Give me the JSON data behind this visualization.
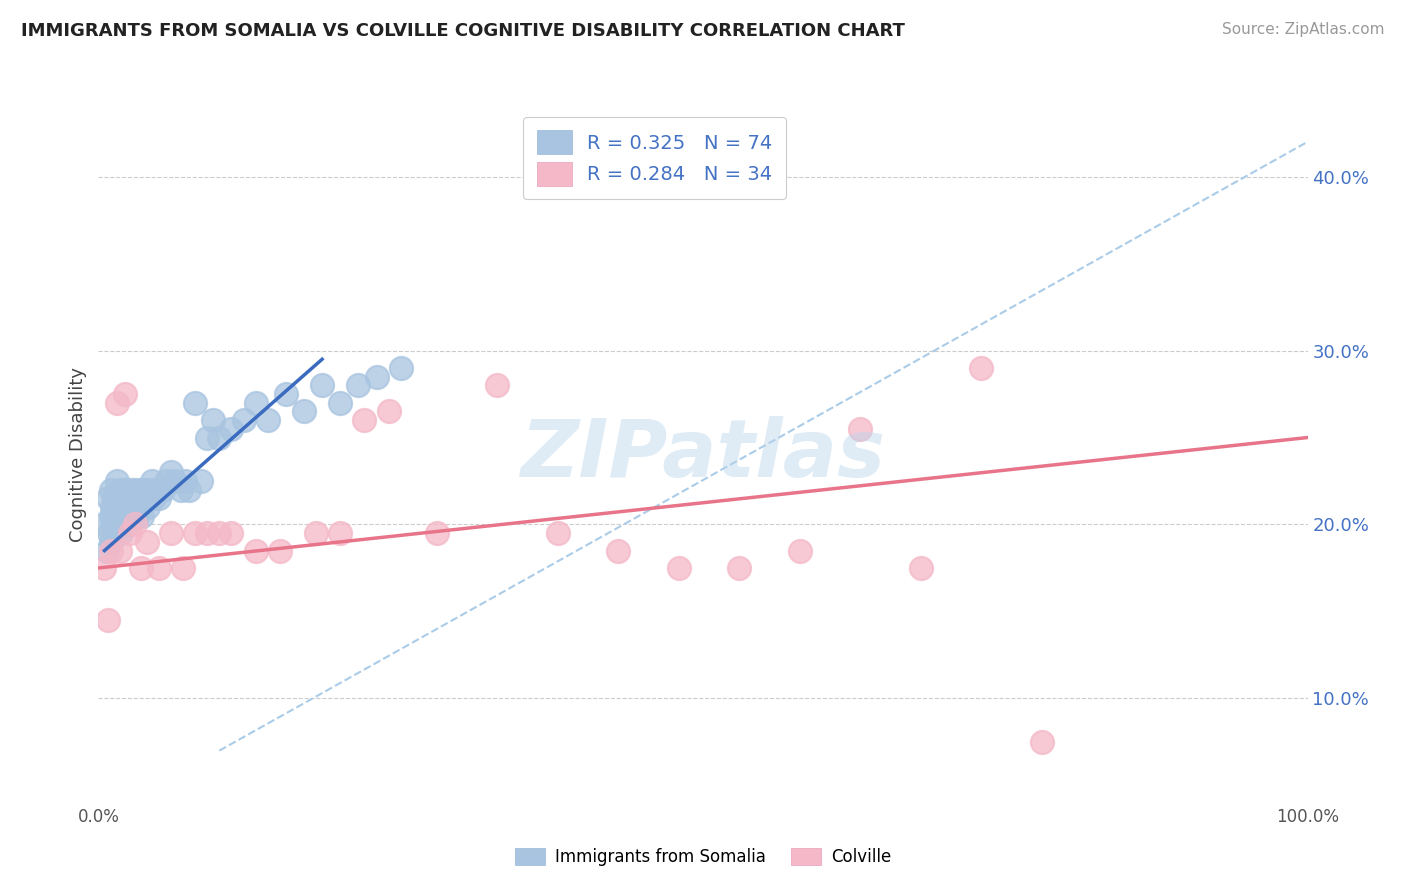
{
  "title": "IMMIGRANTS FROM SOMALIA VS COLVILLE COGNITIVE DISABILITY CORRELATION CHART",
  "source": "Source: ZipAtlas.com",
  "ylabel": "Cognitive Disability",
  "yticks": [
    0.1,
    0.2,
    0.3,
    0.4
  ],
  "ytick_labels": [
    "10.0%",
    "20.0%",
    "30.0%",
    "40.0%"
  ],
  "xticks": [
    0.0,
    1.0
  ],
  "xtick_labels": [
    "0.0%",
    "100.0%"
  ],
  "xlim": [
    0.0,
    1.0
  ],
  "ylim": [
    0.04,
    0.44
  ],
  "blue_R": "0.325",
  "blue_N": "74",
  "pink_R": "0.284",
  "pink_N": "34",
  "blue_color": "#a8c4e0",
  "pink_color": "#f4b8c8",
  "blue_line_color": "#3a6bbf",
  "pink_line_color": "#e8748a",
  "dashed_line_color": "#aacce8",
  "watermark": "ZIPatlas",
  "legend_blue_label": "Immigrants from Somalia",
  "legend_pink_label": "Colville",
  "blue_scatter_x": [
    0.005,
    0.007,
    0.008,
    0.009,
    0.01,
    0.01,
    0.01,
    0.011,
    0.012,
    0.013,
    0.014,
    0.015,
    0.015,
    0.016,
    0.017,
    0.018,
    0.018,
    0.019,
    0.02,
    0.02,
    0.02,
    0.021,
    0.021,
    0.022,
    0.022,
    0.023,
    0.024,
    0.025,
    0.025,
    0.026,
    0.027,
    0.028,
    0.028,
    0.029,
    0.03,
    0.03,
    0.031,
    0.032,
    0.033,
    0.034,
    0.035,
    0.036,
    0.037,
    0.038,
    0.04,
    0.041,
    0.042,
    0.044,
    0.046,
    0.048,
    0.05,
    0.053,
    0.056,
    0.06,
    0.063,
    0.068,
    0.072,
    0.075,
    0.08,
    0.085,
    0.09,
    0.095,
    0.1,
    0.11,
    0.12,
    0.13,
    0.14,
    0.155,
    0.17,
    0.185,
    0.2,
    0.215,
    0.23,
    0.25
  ],
  "blue_scatter_y": [
    0.2,
    0.185,
    0.215,
    0.195,
    0.22,
    0.205,
    0.19,
    0.21,
    0.2,
    0.215,
    0.195,
    0.225,
    0.205,
    0.215,
    0.2,
    0.21,
    0.22,
    0.195,
    0.21,
    0.2,
    0.215,
    0.205,
    0.2,
    0.21,
    0.22,
    0.205,
    0.215,
    0.21,
    0.2,
    0.215,
    0.22,
    0.21,
    0.205,
    0.215,
    0.21,
    0.22,
    0.215,
    0.205,
    0.21,
    0.22,
    0.215,
    0.205,
    0.215,
    0.22,
    0.215,
    0.21,
    0.22,
    0.225,
    0.215,
    0.22,
    0.215,
    0.22,
    0.225,
    0.23,
    0.225,
    0.22,
    0.225,
    0.22,
    0.27,
    0.225,
    0.25,
    0.26,
    0.25,
    0.255,
    0.26,
    0.27,
    0.26,
    0.275,
    0.265,
    0.28,
    0.27,
    0.28,
    0.285,
    0.29
  ],
  "pink_scatter_x": [
    0.005,
    0.008,
    0.01,
    0.015,
    0.018,
    0.022,
    0.026,
    0.03,
    0.035,
    0.04,
    0.05,
    0.06,
    0.07,
    0.08,
    0.09,
    0.1,
    0.11,
    0.13,
    0.15,
    0.18,
    0.2,
    0.22,
    0.24,
    0.28,
    0.33,
    0.38,
    0.43,
    0.48,
    0.53,
    0.58,
    0.63,
    0.68,
    0.73,
    0.78
  ],
  "pink_scatter_y": [
    0.175,
    0.145,
    0.185,
    0.27,
    0.185,
    0.275,
    0.195,
    0.2,
    0.175,
    0.19,
    0.175,
    0.195,
    0.175,
    0.195,
    0.195,
    0.195,
    0.195,
    0.185,
    0.185,
    0.195,
    0.195,
    0.26,
    0.265,
    0.195,
    0.28,
    0.195,
    0.185,
    0.175,
    0.175,
    0.185,
    0.255,
    0.175,
    0.29,
    0.075
  ],
  "blue_line_x": [
    0.005,
    0.185
  ],
  "blue_line_y": [
    0.185,
    0.295
  ],
  "pink_line_x": [
    0.0,
    1.0
  ],
  "pink_line_y": [
    0.175,
    0.25
  ],
  "dashed_line_x": [
    0.1,
    1.0
  ],
  "dashed_line_y": [
    0.07,
    0.42
  ]
}
